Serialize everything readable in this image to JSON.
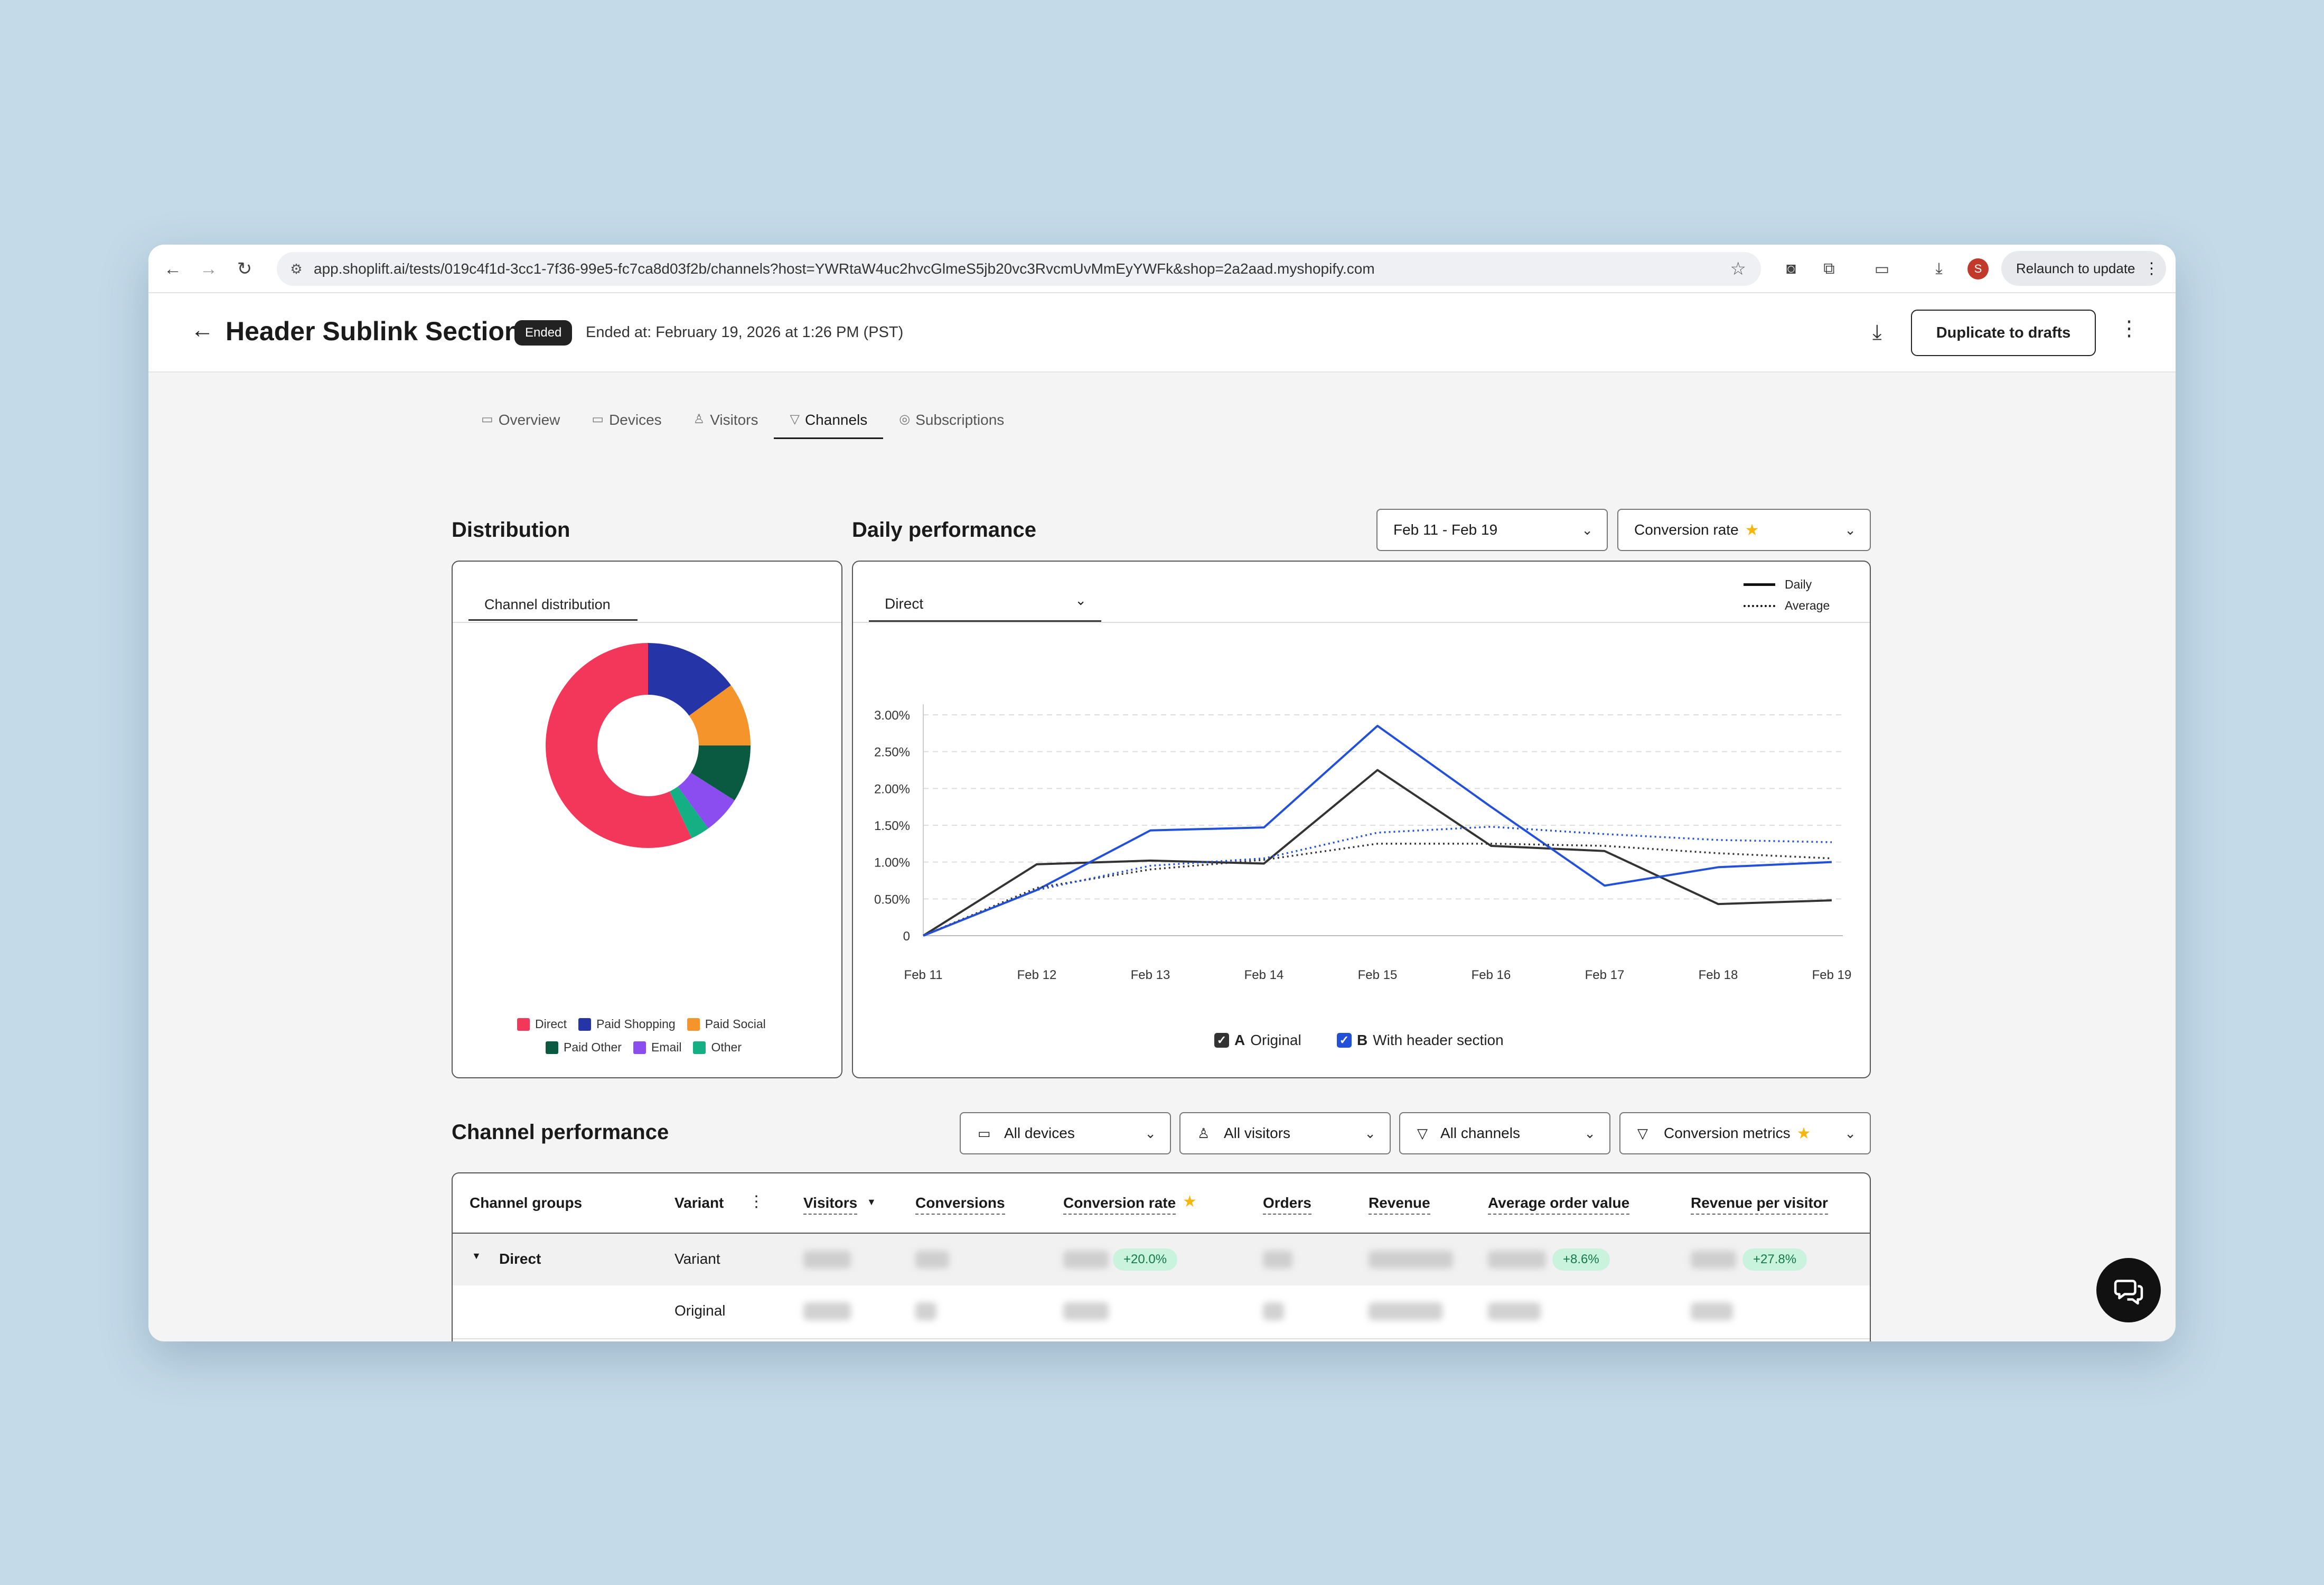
{
  "browser": {
    "url": "app.shoplift.ai/tests/019c4f1d-3cc1-7f36-99e5-fc7ca8d03f2b/channels?host=YWRtaW4uc2hvcGlmeS5jb20vc3RvcmUvMmEyYWFk&shop=2a2aad.myshopify.com",
    "profile_initial": "S",
    "relaunch_label": "Relaunch to update"
  },
  "header": {
    "title": "Header Sublink Section",
    "badge": "Ended",
    "ended_at": "Ended at: February 19, 2026 at 1:26 PM (PST)",
    "duplicate_label": "Duplicate to drafts"
  },
  "tabs": [
    {
      "label": "Overview",
      "icon": "monitor-icon"
    },
    {
      "label": "Devices",
      "icon": "devices-icon"
    },
    {
      "label": "Visitors",
      "icon": "users-icon"
    },
    {
      "label": "Channels",
      "icon": "funnel-icon",
      "active": true
    },
    {
      "label": "Subscriptions",
      "icon": "subscriptions-icon"
    }
  ],
  "distribution": {
    "title": "Distribution",
    "tab_label": "Channel distribution",
    "legend": [
      {
        "label": "Direct",
        "color": "#f2375a"
      },
      {
        "label": "Paid Shopping",
        "color": "#2535a8"
      },
      {
        "label": "Paid Social",
        "color": "#f4942a"
      },
      {
        "label": "Paid Other",
        "color": "#0a5a41"
      },
      {
        "label": "Email",
        "color": "#8b4cf0"
      },
      {
        "label": "Other",
        "color": "#14b083"
      }
    ]
  },
  "daily": {
    "title": "Daily performance",
    "date_range": "Feb 11 - Feb 19",
    "metric": "Conversion rate",
    "channel_select": "Direct",
    "legend_daily": "Daily",
    "legend_average": "Average",
    "variant_a_letter": "A",
    "variant_a": "Original",
    "variant_b_letter": "B",
    "variant_b": "With header section",
    "colors": {
      "A": "#333333",
      "B": "#2350d8"
    }
  },
  "chart_data": {
    "type": "line",
    "x": [
      "Feb 11",
      "Feb 12",
      "Feb 13",
      "Feb 14",
      "Feb 15",
      "Feb 16",
      "Feb 17",
      "Feb 18",
      "Feb 19"
    ],
    "y_ticks": [
      "0",
      "0.50%",
      "1.00%",
      "1.50%",
      "2.00%",
      "2.50%",
      "3.00%"
    ],
    "ylim": [
      0,
      3.0
    ],
    "series": [
      {
        "name": "Original",
        "kind": "daily",
        "values": [
          0,
          0.97,
          1.02,
          0.98,
          2.25,
          1.22,
          1.15,
          0.43,
          0.48
        ]
      },
      {
        "name": "With header section",
        "kind": "daily",
        "values": [
          0,
          0.62,
          1.43,
          1.47,
          2.85,
          1.75,
          0.68,
          0.93,
          1.0
        ]
      },
      {
        "name": "Original",
        "kind": "average",
        "values": [
          0,
          0.65,
          0.9,
          1.03,
          1.25,
          1.25,
          1.22,
          1.12,
          1.05
        ]
      },
      {
        "name": "With header section",
        "kind": "average",
        "values": [
          0,
          0.62,
          0.95,
          1.05,
          1.4,
          1.48,
          1.38,
          1.3,
          1.27
        ]
      }
    ],
    "grid": true
  },
  "pie_data": {
    "type": "pie",
    "labels": [
      "Direct",
      "Paid Shopping",
      "Paid Social",
      "Paid Other",
      "Email",
      "Other"
    ],
    "values": [
      57,
      15,
      10,
      9,
      6,
      3
    ]
  },
  "channel_perf": {
    "title": "Channel performance",
    "filters": [
      "All devices",
      "All visitors",
      "All channels",
      "Conversion metrics"
    ],
    "columns": [
      "Channel groups",
      "Variant",
      "Visitors",
      "Conversions",
      "Conversion rate",
      "Orders",
      "Revenue",
      "Average order value",
      "Revenue per visitor"
    ],
    "rows": [
      {
        "group": "Direct",
        "variant": "Variant",
        "cr_change": "+20.0%",
        "aov_change": "+8.6%",
        "rpv_change": "+27.8%"
      },
      {
        "group": "",
        "variant": "Original"
      }
    ]
  }
}
